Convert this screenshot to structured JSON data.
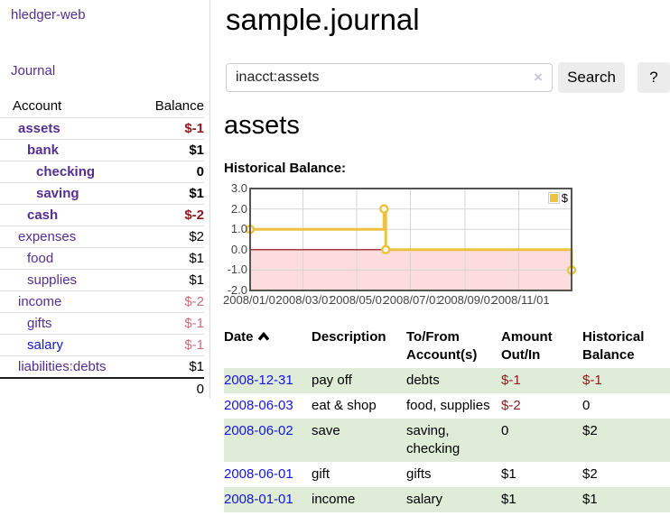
{
  "app_title": "hledger-web",
  "colors": {
    "link_purple": "#552e91",
    "link_blue": "#1515dd",
    "negative_dark": "#8c1a1a",
    "negative_pale": "#c4707a",
    "row_highlight_green": "#deecd8",
    "chart_gold": "#edc240",
    "chart_negative_region": "#fcdcdc",
    "chart_zero_line": "#8b0000"
  },
  "sidebar": {
    "journal_link": "Journal",
    "header": {
      "account": "Account",
      "balance": "Balance"
    },
    "accounts": [
      {
        "name": "assets",
        "balance": "$-1",
        "depth": 1,
        "bold": true,
        "negative": true
      },
      {
        "name": "bank",
        "balance": "$1",
        "depth": 2,
        "bold": true,
        "negative": false
      },
      {
        "name": "checking",
        "balance": "0",
        "depth": 3,
        "bold": true,
        "negative": false
      },
      {
        "name": "saving",
        "balance": "$1",
        "depth": 3,
        "bold": true,
        "negative": false
      },
      {
        "name": "cash",
        "balance": "$-2",
        "depth": 2,
        "bold": true,
        "negative": true
      },
      {
        "name": "expenses",
        "balance": "$2",
        "depth": 1,
        "bold": false,
        "negative": false
      },
      {
        "name": "food",
        "balance": "$1",
        "depth": 2,
        "bold": false,
        "negative": false
      },
      {
        "name": "supplies",
        "balance": "$1",
        "depth": 2,
        "bold": false,
        "negative": false
      },
      {
        "name": "income",
        "balance": "$-2",
        "depth": 1,
        "bold": false,
        "negative": true
      },
      {
        "name": "gifts",
        "balance": "$-1",
        "depth": 2,
        "bold": false,
        "negative": true
      },
      {
        "name": "salary",
        "balance": "$-1",
        "depth": 2,
        "bold": false,
        "negative": true,
        "unvisited": true
      },
      {
        "name": "liabilities:debts",
        "balance": "$1",
        "depth": 1,
        "bold": false,
        "negative": false
      }
    ],
    "total": "0"
  },
  "main": {
    "title": "sample.journal",
    "search": {
      "value": "inacct:assets",
      "clear_icon": "×",
      "search_button": "Search",
      "help_button": "?"
    },
    "account_heading": "assets",
    "chart_heading": "Historical Balance:"
  },
  "chart_data": {
    "type": "line",
    "style": "step",
    "title": "Historical Balance:",
    "series": [
      {
        "name": "$",
        "points": [
          {
            "date": "2008-01-01",
            "value": 1
          },
          {
            "date": "2008-06-01",
            "value": 2
          },
          {
            "date": "2008-06-03",
            "value": 0
          },
          {
            "date": "2008-12-31",
            "value": -1
          }
        ]
      }
    ],
    "ylim": [
      -2,
      3
    ],
    "yticks": [
      3,
      2,
      1,
      0,
      -1,
      -2
    ],
    "ytick_labels": [
      "3.0",
      "2.0",
      "1.0",
      "0.0",
      "-1.0",
      "-2.0"
    ],
    "xticks": [
      "2008/01/01",
      "2008/03/01",
      "2008/05/01",
      "2008/07/01",
      "2008/09/01",
      "2008/11/01"
    ],
    "xrange": [
      "2008-01-01",
      "2008-12-31"
    ],
    "legend": {
      "label": "$",
      "position": "top-right"
    },
    "grid": true,
    "negative_region_shaded": true
  },
  "register": {
    "headers": {
      "date": "Date",
      "sort_icon": "chevron-up",
      "description": "Description",
      "accounts": "To/From Account(s)",
      "amount": "Amount Out/In",
      "balance": "Historical Balance"
    },
    "rows": [
      {
        "date": "2008-12-31",
        "description": "pay off",
        "accounts": "debts",
        "amount": "$-1",
        "balance": "$-1",
        "amount_negative": true,
        "balance_negative": true,
        "highlight": true
      },
      {
        "date": "2008-06-03",
        "description": "eat & shop",
        "accounts": "food, supplies",
        "amount": "$-2",
        "balance": "0",
        "amount_negative": true,
        "balance_negative": false,
        "highlight": false
      },
      {
        "date": "2008-06-02",
        "description": "save",
        "accounts": "saving, checking",
        "amount": "0",
        "balance": "$2",
        "amount_negative": false,
        "balance_negative": false,
        "highlight": true
      },
      {
        "date": "2008-06-01",
        "description": "gift",
        "accounts": "gifts",
        "amount": "$1",
        "balance": "$2",
        "amount_negative": false,
        "balance_negative": false,
        "highlight": false
      },
      {
        "date": "2008-01-01",
        "description": "income",
        "accounts": "salary",
        "amount": "$1",
        "balance": "$1",
        "amount_negative": false,
        "balance_negative": false,
        "highlight": true
      }
    ]
  }
}
